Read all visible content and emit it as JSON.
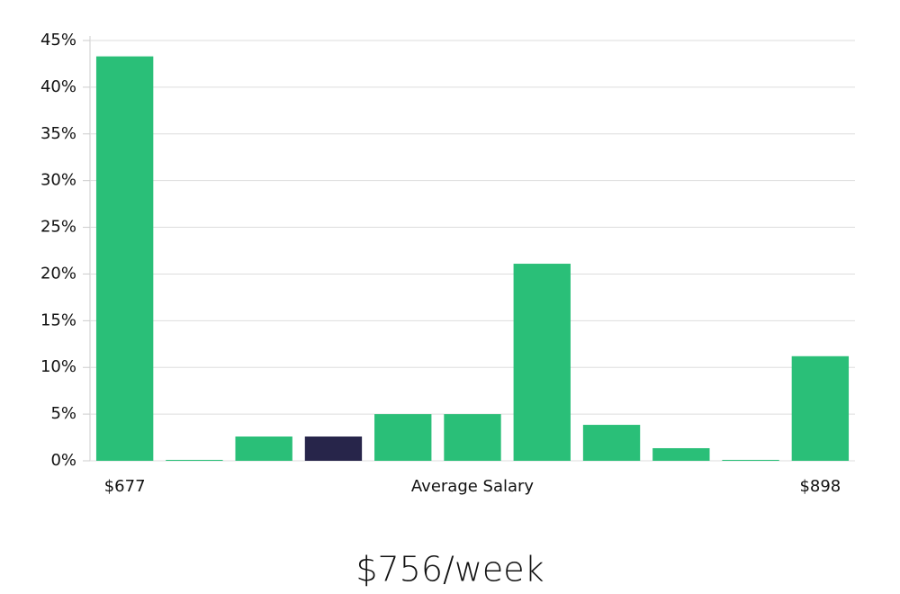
{
  "chart_data": {
    "type": "bar",
    "categories": [
      "$677",
      null,
      null,
      null,
      null,
      null,
      null,
      null,
      null,
      null,
      "$898"
    ],
    "values": [
      43.3,
      0.1,
      2.6,
      2.6,
      5.0,
      5.0,
      21.1,
      3.85,
      1.35,
      0.1,
      11.2
    ],
    "colors": [
      "#2abf78",
      "#2abf78",
      "#2abf78",
      "#27254a",
      "#2abf78",
      "#2abf78",
      "#2abf78",
      "#2abf78",
      "#2abf78",
      "#2abf78",
      "#2abf78"
    ],
    "x_label": "Average Salary",
    "annotation": "$756/week",
    "ylim": [
      0,
      45
    ],
    "yticks": [
      {
        "value": 0,
        "label": "0%"
      },
      {
        "value": 5,
        "label": "5%"
      },
      {
        "value": 10,
        "label": "10%"
      },
      {
        "value": 15,
        "label": "15%"
      },
      {
        "value": 20,
        "label": "20%"
      },
      {
        "value": 25,
        "label": "25%"
      },
      {
        "value": 30,
        "label": "30%"
      },
      {
        "value": 35,
        "label": "35%"
      },
      {
        "value": 40,
        "label": "40%"
      },
      {
        "value": 45,
        "label": "45%"
      }
    ],
    "grid": true
  }
}
